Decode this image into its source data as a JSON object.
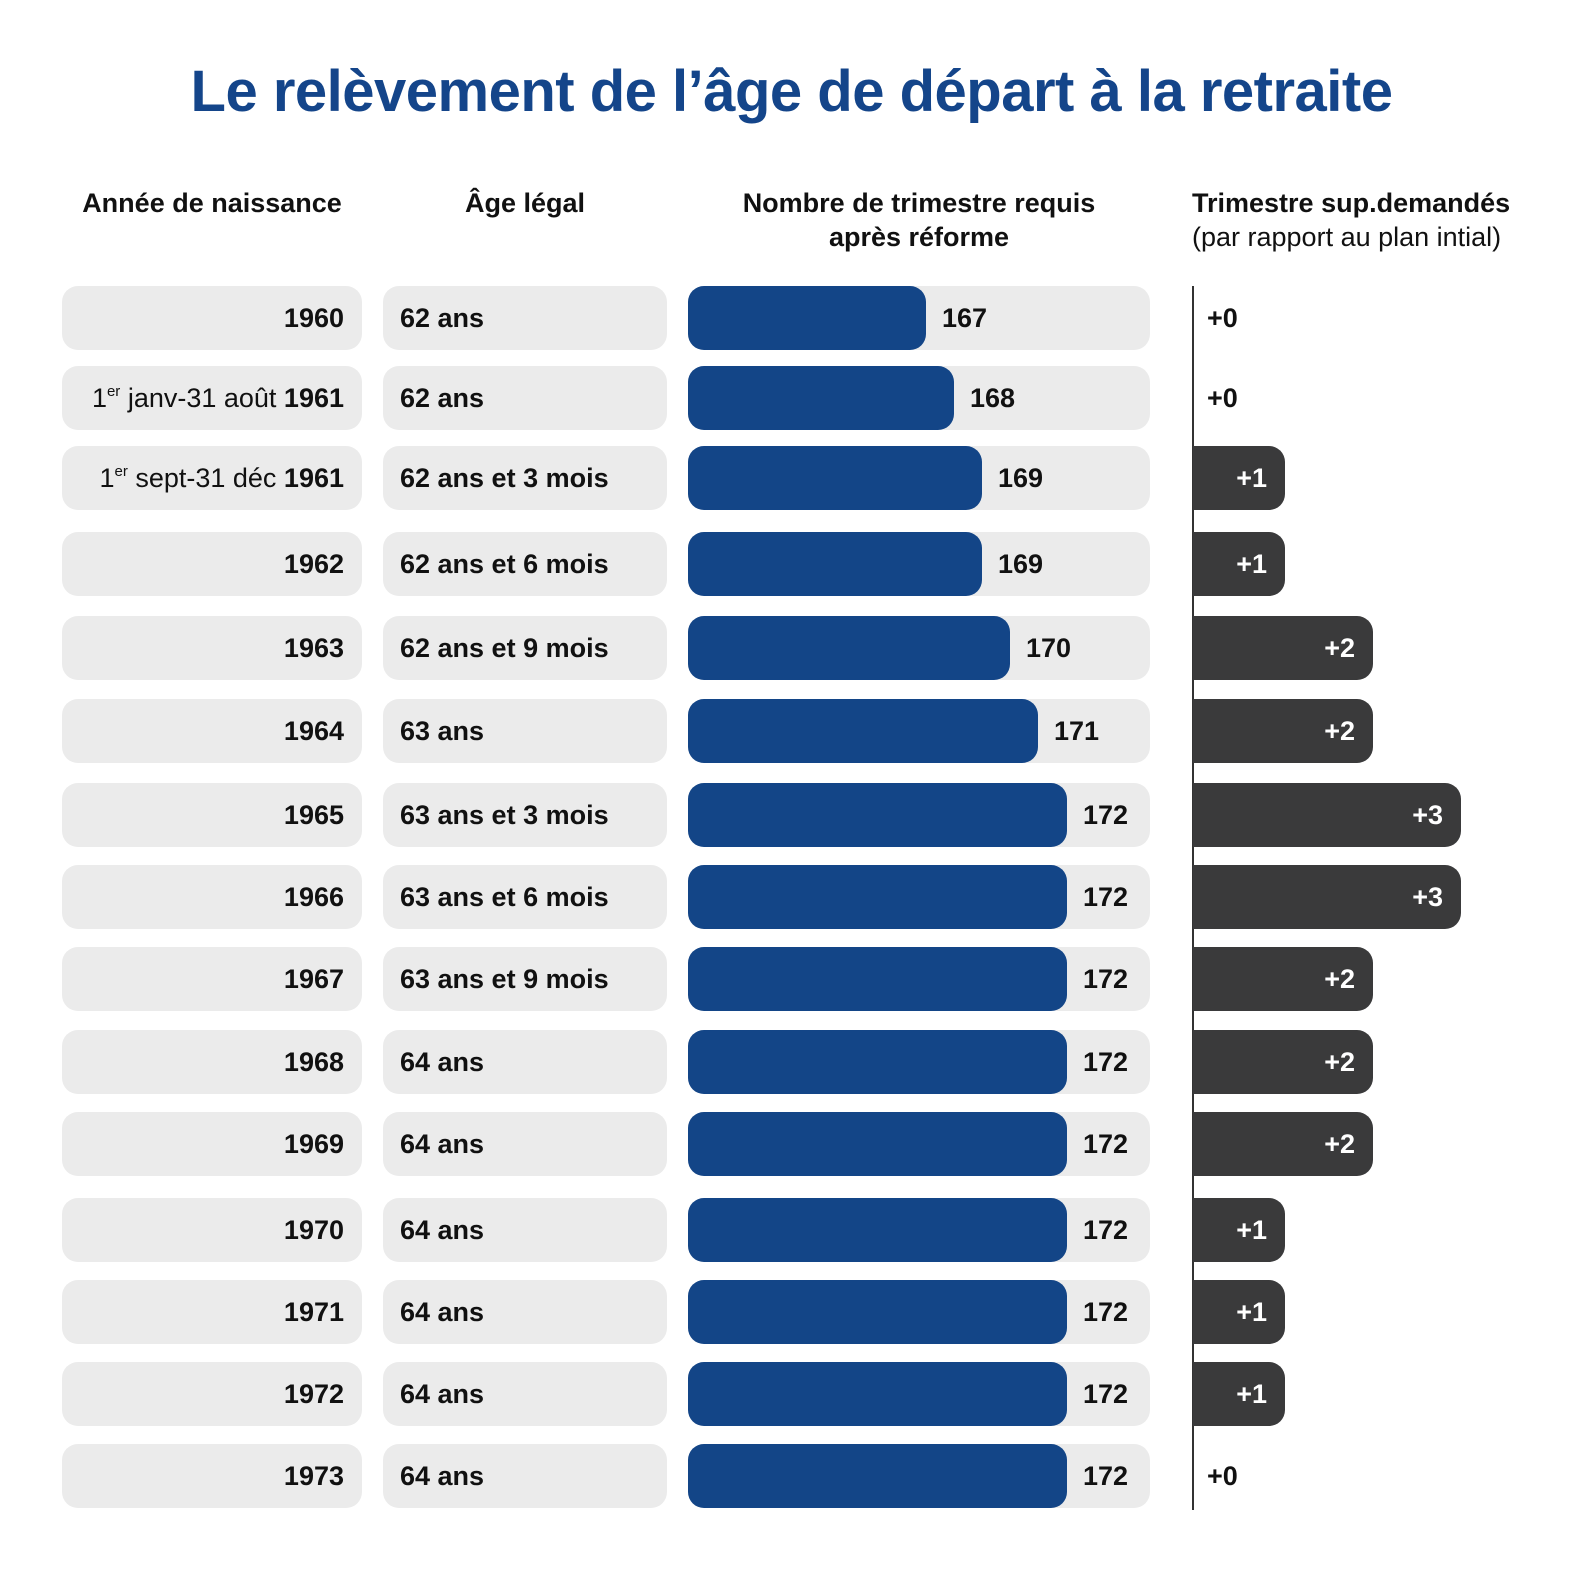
{
  "title": "Le relèvement de l’âge de départ à la retraite",
  "headers": {
    "year": "Année de naissance",
    "age": "Âge légal",
    "trimestres_line1": "Nombre de trimestre requis",
    "trimestres_line2": "après réforme",
    "sup_line1": "Trimestre sup.demandés",
    "sup_line2": "(par rapport au plan intial)"
  },
  "colors": {
    "title": "#14458a",
    "bar": "#134587",
    "sup_bar": "#3a3a3b",
    "pill": "#ebebeb"
  },
  "chart_data": {
    "type": "bar",
    "title": "Le relèvement de l’âge de départ à la retraite",
    "bar_scale_domain": [
      160,
      174
    ],
    "sup_scale_max": 3,
    "rows": [
      {
        "year_prefix": "",
        "year_sup": "",
        "year_mid": "",
        "year_bold": "1960",
        "age": "62 ans",
        "trimestres": 167,
        "sup": 0,
        "sup_label": "+0"
      },
      {
        "year_prefix": "1",
        "year_sup": "er",
        "year_mid": " janv-31 août ",
        "year_bold": "1961",
        "age": "62 ans",
        "trimestres": 168,
        "sup": 0,
        "sup_label": "+0"
      },
      {
        "year_prefix": "1",
        "year_sup": "er",
        "year_mid": " sept-31 déc ",
        "year_bold": "1961",
        "age": "62 ans et 3 mois",
        "trimestres": 169,
        "sup": 1,
        "sup_label": "+1"
      },
      {
        "year_prefix": "",
        "year_sup": "",
        "year_mid": "",
        "year_bold": "1962",
        "age": "62 ans et 6 mois",
        "trimestres": 169,
        "sup": 1,
        "sup_label": "+1"
      },
      {
        "year_prefix": "",
        "year_sup": "",
        "year_mid": "",
        "year_bold": "1963",
        "age": "62 ans et 9 mois",
        "trimestres": 170,
        "sup": 2,
        "sup_label": "+2"
      },
      {
        "year_prefix": "",
        "year_sup": "",
        "year_mid": "",
        "year_bold": "1964",
        "age": "63 ans",
        "trimestres": 171,
        "sup": 2,
        "sup_label": "+2"
      },
      {
        "year_prefix": "",
        "year_sup": "",
        "year_mid": "",
        "year_bold": "1965",
        "age": "63 ans et 3 mois",
        "trimestres": 172,
        "sup": 3,
        "sup_label": "+3"
      },
      {
        "year_prefix": "",
        "year_sup": "",
        "year_mid": "",
        "year_bold": "1966",
        "age": "63 ans et 6 mois",
        "trimestres": 172,
        "sup": 3,
        "sup_label": "+3"
      },
      {
        "year_prefix": "",
        "year_sup": "",
        "year_mid": "",
        "year_bold": "1967",
        "age": "63 ans et 9 mois",
        "trimestres": 172,
        "sup": 2,
        "sup_label": "+2"
      },
      {
        "year_prefix": "",
        "year_sup": "",
        "year_mid": "",
        "year_bold": "1968",
        "age": "64 ans",
        "trimestres": 172,
        "sup": 2,
        "sup_label": "+2"
      },
      {
        "year_prefix": "",
        "year_sup": "",
        "year_mid": "",
        "year_bold": "1969",
        "age": "64 ans",
        "trimestres": 172,
        "sup": 2,
        "sup_label": "+2"
      },
      {
        "year_prefix": "",
        "year_sup": "",
        "year_mid": "",
        "year_bold": "1970",
        "age": "64 ans",
        "trimestres": 172,
        "sup": 1,
        "sup_label": "+1"
      },
      {
        "year_prefix": "",
        "year_sup": "",
        "year_mid": "",
        "year_bold": "1971",
        "age": "64 ans",
        "trimestres": 172,
        "sup": 1,
        "sup_label": "+1"
      },
      {
        "year_prefix": "",
        "year_sup": "",
        "year_mid": "",
        "year_bold": "1972",
        "age": "64 ans",
        "trimestres": 172,
        "sup": 1,
        "sup_label": "+1"
      },
      {
        "year_prefix": "",
        "year_sup": "",
        "year_mid": "",
        "year_bold": "1973",
        "age": "64 ans",
        "trimestres": 172,
        "sup": 0,
        "sup_label": "+0"
      }
    ]
  }
}
